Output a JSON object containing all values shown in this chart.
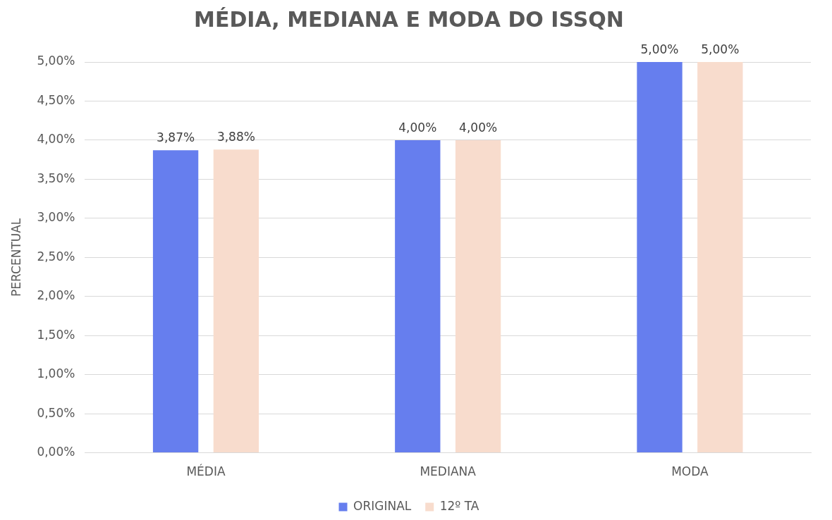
{
  "chart_data": {
    "type": "bar",
    "title": "MÉDIA, MEDIANA E MODA DO ISSQN",
    "ylabel": "PERCENTUAL",
    "categories": [
      "MÉDIA",
      "MEDIANA",
      "MODA"
    ],
    "series": [
      {
        "name": "ORIGINAL",
        "color": "#667eee",
        "values": [
          3.87,
          4.0,
          5.0
        ],
        "value_labels": [
          "3,87%",
          "4,00%",
          "5,00%"
        ]
      },
      {
        "name": "12º TA",
        "color": "#f8dccd",
        "values": [
          3.88,
          4.0,
          5.0
        ],
        "value_labels": [
          "3,88%",
          "4,00%",
          "5,00%"
        ]
      }
    ],
    "ylim": [
      0,
      5
    ],
    "yticks": [
      {
        "value": 0,
        "label": "0,00%"
      },
      {
        "value": 0.5,
        "label": "0,50%"
      },
      {
        "value": 1,
        "label": "1,00%"
      },
      {
        "value": 1.5,
        "label": "1,50%"
      },
      {
        "value": 2,
        "label": "2,00%"
      },
      {
        "value": 2.5,
        "label": "2,50%"
      },
      {
        "value": 3,
        "label": "3,00%"
      },
      {
        "value": 3.5,
        "label": "3,50%"
      },
      {
        "value": 4,
        "label": "4,00%"
      },
      {
        "value": 4.5,
        "label": "4,50%"
      },
      {
        "value": 5,
        "label": "5,00%"
      }
    ],
    "grid": "y",
    "legend": "bottom"
  }
}
